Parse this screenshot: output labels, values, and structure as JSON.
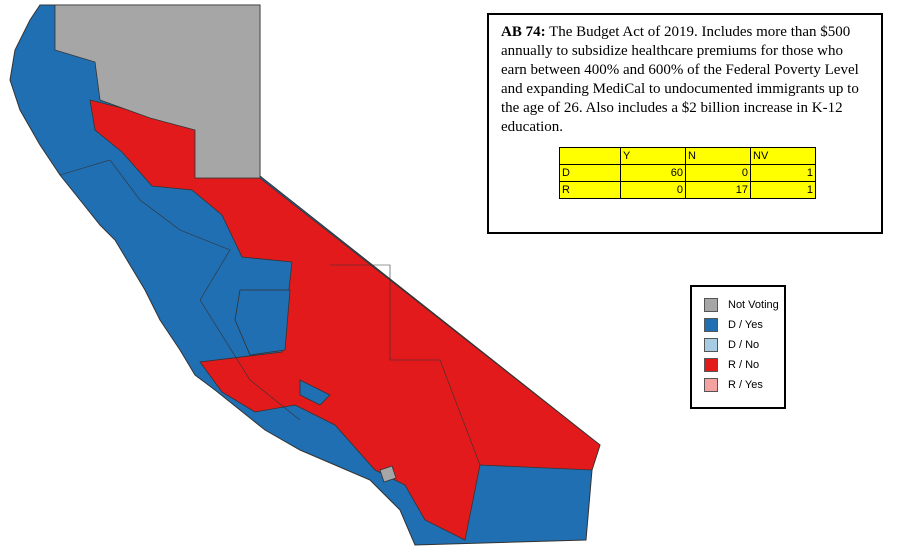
{
  "description": {
    "bill": "AB 74:",
    "text": "The Budget Act of 2019.  Includes more than $500 annually to subsidize healthcare premiums for those who earn between 400% and 600% of the Federal Poverty Level and expanding MediCal to undocumented immigrants up to the age of 26.  Also includes a $2 billion increase in K-12 education."
  },
  "vote_table": {
    "columns": [
      "Y",
      "N",
      "NV"
    ],
    "rows": [
      {
        "party": "D",
        "values": [
          60,
          0,
          1
        ]
      },
      {
        "party": "R",
        "values": [
          0,
          17,
          1
        ]
      }
    ]
  },
  "legend": [
    {
      "label": "Not Voting",
      "color": "#a6a6a6"
    },
    {
      "label": "D / Yes",
      "color": "#1f6fb2"
    },
    {
      "label": "D / No",
      "color": "#a6cbe3"
    },
    {
      "label": "R / No",
      "color": "#e31a1c"
    },
    {
      "label": "R / Yes",
      "color": "#f4a1a1"
    }
  ]
}
